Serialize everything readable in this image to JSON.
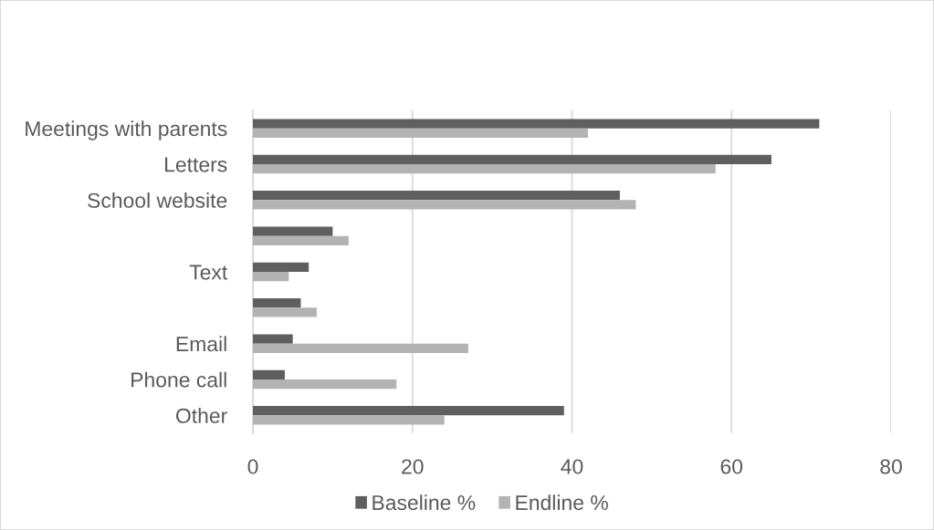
{
  "chart_data": {
    "type": "bar",
    "orientation": "horizontal",
    "categories": [
      "Meetings with parents",
      "Letters",
      "School website",
      null,
      "Text",
      null,
      "Email",
      "Phone call",
      "Other"
    ],
    "series": [
      {
        "name": "Baseline %",
        "color": "#5f5f5f",
        "values": [
          71,
          65,
          46,
          10,
          7,
          6,
          5,
          4,
          39
        ]
      },
      {
        "name": "Endline %",
        "color": "#b3b3b3",
        "values": [
          42,
          58,
          48,
          12,
          4.5,
          8,
          27,
          18,
          24
        ]
      }
    ],
    "xlim": [
      0,
      80
    ],
    "xticks": [
      0,
      20,
      40,
      60,
      80
    ],
    "grid": "x",
    "legend": "bottom"
  }
}
